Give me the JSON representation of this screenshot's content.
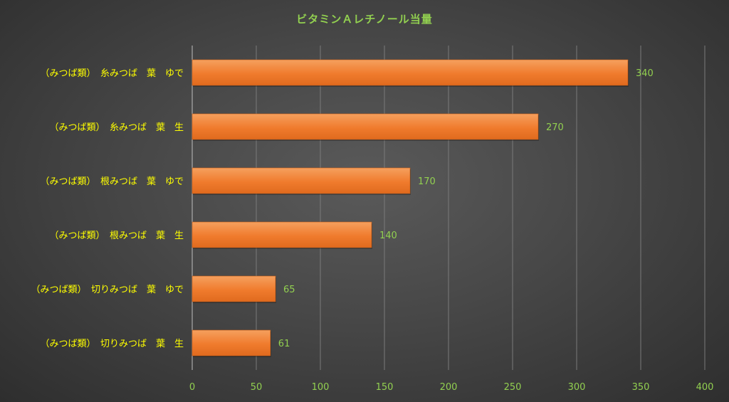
{
  "chart_data": {
    "type": "bar",
    "orientation": "horizontal",
    "title": "ビタミンＡレチノール当量",
    "categories": [
      "（みつば類）　糸みつば　葉　ゆで",
      "（みつば類）　糸みつば　葉　生",
      "（みつば類）　根みつば　葉　ゆで",
      "（みつば類）　根みつば　葉　生",
      "（みつば類）　切りみつば　葉　ゆで",
      "（みつば類）　切りみつば　葉　生"
    ],
    "values": [
      340,
      270,
      170,
      140,
      65,
      61
    ],
    "xlim": [
      0,
      400
    ],
    "xticks": [
      0,
      50,
      100,
      150,
      200,
      250,
      300,
      350,
      400
    ],
    "grid": true,
    "data_labels": true,
    "colors": {
      "bar": "#f07b2d",
      "bar_highlight": "#f5a05e",
      "title": "#92d050",
      "category_text": "#ffff00",
      "tick_text": "#92d050",
      "data_label_text": "#92d050"
    }
  }
}
